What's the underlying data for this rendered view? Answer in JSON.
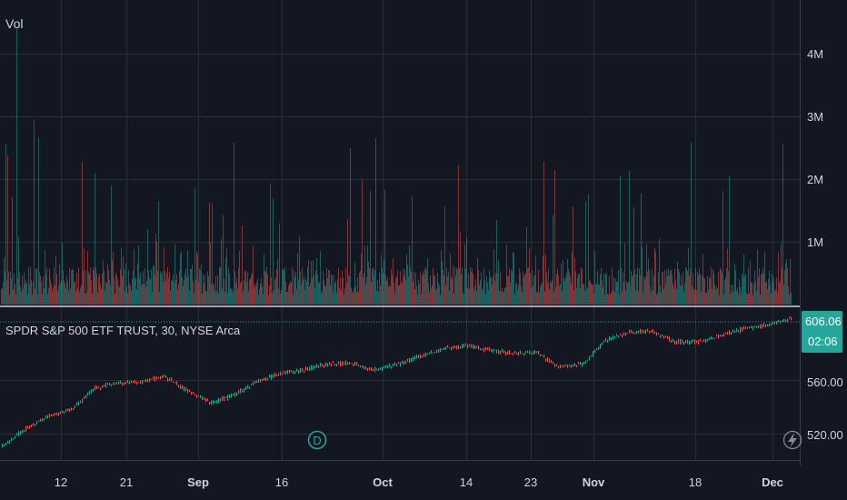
{
  "volume_pane": {
    "label": "Vol",
    "y_ticks": [
      {
        "value": 1000000,
        "label": "1M"
      },
      {
        "value": 2000000,
        "label": "2M"
      },
      {
        "value": 3000000,
        "label": "3M"
      },
      {
        "value": 4000000,
        "label": "4M"
      }
    ]
  },
  "price_pane": {
    "legend": "SPDR S&P 500 ETF TRUST, 30, NYSE Arca",
    "y_ticks": [
      {
        "value": 520,
        "label": "520.00"
      },
      {
        "value": 560,
        "label": "560.00"
      }
    ],
    "last_price": "606.06",
    "countdown": "02:06",
    "last_price_color": "#26a69a",
    "dividend_marker": "D"
  },
  "time_axis": {
    "ticks": [
      {
        "label": "12",
        "bold": false
      },
      {
        "label": "21",
        "bold": false
      },
      {
        "label": "Sep",
        "bold": true
      },
      {
        "label": "16",
        "bold": false
      },
      {
        "label": "Oct",
        "bold": true
      },
      {
        "label": "14",
        "bold": false
      },
      {
        "label": "23",
        "bold": false
      },
      {
        "label": "Nov",
        "bold": true
      },
      {
        "label": "18",
        "bold": false
      },
      {
        "label": "Dec",
        "bold": true
      }
    ]
  },
  "icons": {
    "alert": "lightning-icon"
  },
  "colors": {
    "background": "#131722",
    "grid": "#2a2e39",
    "up": "#26a69a",
    "down": "#ef5350",
    "text": "#d1d4dc"
  },
  "chart_data": {
    "type": "line",
    "title": "SPDR S&P 500 ETF TRUST, 30, NYSE Arca",
    "series": [
      {
        "name": "SPDR S&P 500 ETF TRUST",
        "x": [
          "Aug 5",
          "Aug 8",
          "Aug 12",
          "Aug 15",
          "Aug 19",
          "Aug 22",
          "Aug 26",
          "Aug 29",
          "Sep 3",
          "Sep 6",
          "Sep 9",
          "Sep 12",
          "Sep 16",
          "Sep 19",
          "Sep 24",
          "Sep 27",
          "Oct 1",
          "Oct 4",
          "Oct 9",
          "Oct 14",
          "Oct 17",
          "Oct 21",
          "Oct 24",
          "Oct 28",
          "Oct 31",
          "Nov 4",
          "Nov 6",
          "Nov 8",
          "Nov 12",
          "Nov 15",
          "Nov 19",
          "Nov 22",
          "Nov 26",
          "Nov 29",
          "Dec 3"
        ],
        "values": [
          510,
          523,
          533,
          538,
          554,
          558,
          559,
          563,
          552,
          543,
          549,
          559,
          565,
          568,
          572,
          573,
          568,
          572,
          578,
          584,
          586,
          583,
          580,
          581,
          570,
          572,
          590,
          596,
          597,
          589,
          589,
          594,
          599,
          602,
          606
        ]
      }
    ],
    "volume": {
      "y_range": [
        0,
        4800000
      ],
      "note_levels": [
        1000000,
        2000000,
        3000000,
        4000000
      ]
    },
    "ylim": [
      500,
      615
    ]
  }
}
